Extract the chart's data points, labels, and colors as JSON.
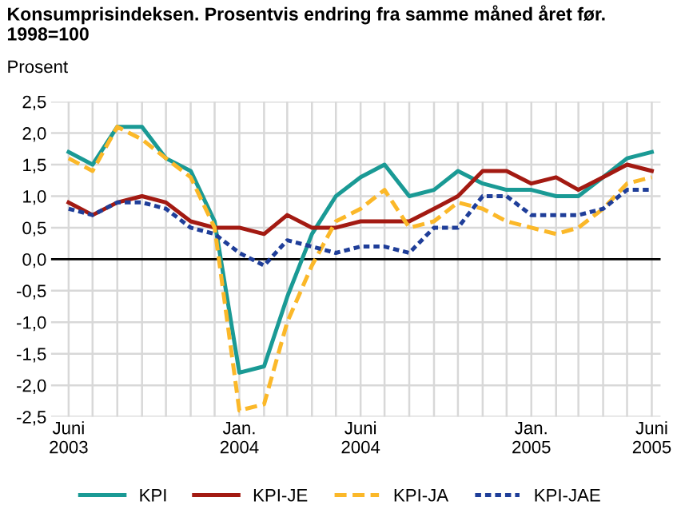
{
  "chart_data": {
    "type": "line",
    "title": "Konsumprisindeksen. Prosentvis endring fra samme måned året før.\n1998=100",
    "ylabel": "Prosent",
    "x": [
      "2003-06",
      "2003-07",
      "2003-08",
      "2003-09",
      "2003-10",
      "2003-11",
      "2003-12",
      "2004-01",
      "2004-02",
      "2004-03",
      "2004-04",
      "2004-05",
      "2004-06",
      "2004-07",
      "2004-08",
      "2004-09",
      "2004-10",
      "2004-11",
      "2004-12",
      "2005-01",
      "2005-02",
      "2005-03",
      "2005-04",
      "2005-05",
      "2005-06"
    ],
    "series": [
      {
        "name": "KPI",
        "color": "#1a9a95",
        "line_style": "solid",
        "values": [
          1.7,
          1.5,
          2.1,
          2.1,
          1.6,
          1.4,
          0.6,
          -1.8,
          -1.7,
          -0.6,
          0.4,
          1.0,
          1.3,
          1.5,
          1.0,
          1.1,
          1.4,
          1.2,
          1.1,
          1.1,
          1.0,
          1.0,
          1.3,
          1.6,
          1.7
        ]
      },
      {
        "name": "KPI-JE",
        "color": "#a31a12",
        "line_style": "solid",
        "values": [
          0.9,
          0.7,
          0.9,
          1.0,
          0.9,
          0.6,
          0.5,
          0.5,
          0.4,
          0.7,
          0.5,
          0.5,
          0.6,
          0.6,
          0.6,
          0.8,
          1.0,
          1.4,
          1.4,
          1.2,
          1.3,
          1.1,
          1.3,
          1.5,
          1.4
        ]
      },
      {
        "name": "KPI-JA",
        "color": "#fbb829",
        "line_style": "dashed",
        "values": [
          1.6,
          1.4,
          2.1,
          1.9,
          1.6,
          1.3,
          0.5,
          -2.4,
          -2.3,
          -1.0,
          -0.1,
          0.6,
          0.8,
          1.1,
          0.5,
          0.6,
          0.9,
          0.8,
          0.6,
          0.5,
          0.4,
          0.5,
          0.8,
          1.2,
          1.3
        ]
      },
      {
        "name": "KPI-JAE",
        "color": "#1f3e99",
        "line_style": "dotted",
        "values": [
          0.8,
          0.7,
          0.9,
          0.9,
          0.8,
          0.5,
          0.4,
          0.1,
          -0.1,
          0.3,
          0.2,
          0.1,
          0.2,
          0.2,
          0.1,
          0.5,
          0.5,
          1.0,
          1.0,
          0.7,
          0.7,
          0.7,
          0.8,
          1.1,
          1.1
        ]
      }
    ],
    "xlim": [
      "2003-05-10",
      "2005-06-12"
    ],
    "xticks": [
      {
        "value": "2003-06",
        "label": "Juni\n2003"
      },
      {
        "value": "2003-07",
        "label": null
      },
      {
        "value": "2003-08",
        "label": null
      },
      {
        "value": "2003-09",
        "label": null
      },
      {
        "value": "2003-10",
        "label": null
      },
      {
        "value": "2003-11",
        "label": null
      },
      {
        "value": "2003-12",
        "label": null
      },
      {
        "value": "2004-01",
        "label": "Jan.\n2004"
      },
      {
        "value": "2004-02",
        "label": null
      },
      {
        "value": "2004-03",
        "label": null
      },
      {
        "value": "2004-04",
        "label": null
      },
      {
        "value": "2004-05",
        "label": null
      },
      {
        "value": "2004-06",
        "label": "Juni\n2004"
      },
      {
        "value": "2004-07",
        "label": null
      },
      {
        "value": "2004-08",
        "label": null
      },
      {
        "value": "2004-09",
        "label": null
      },
      {
        "value": "2004-10",
        "label": null
      },
      {
        "value": "2004-11",
        "label": null
      },
      {
        "value": "2004-12",
        "label": null
      },
      {
        "value": "2005-01",
        "label": "Jan.\n2005"
      },
      {
        "value": "2005-02",
        "label": null
      },
      {
        "value": "2005-03",
        "label": null
      },
      {
        "value": "2005-04",
        "label": null
      },
      {
        "value": "2005-05",
        "label": null
      },
      {
        "value": "2005-06",
        "label": "Juni\n2005"
      }
    ],
    "ylim": [
      -2.5,
      2.5
    ],
    "yticks": [
      {
        "value": -2.5,
        "label": "-2,5"
      },
      {
        "value": -2.0,
        "label": "-2,0"
      },
      {
        "value": -1.5,
        "label": "-1,5"
      },
      {
        "value": -1.0,
        "label": "-1,0"
      },
      {
        "value": -0.5,
        "label": "-0,5"
      },
      {
        "value": 0.0,
        "label": "0,0"
      },
      {
        "value": 0.5,
        "label": "0,5"
      },
      {
        "value": 1.0,
        "label": "1,0"
      },
      {
        "value": 1.5,
        "label": "1,5"
      },
      {
        "value": 2.0,
        "label": "2,0"
      },
      {
        "value": 2.5,
        "label": "2,5"
      }
    ],
    "ref_lines": [
      {
        "axis": "y",
        "value": 0,
        "color": "#000000"
      }
    ],
    "grid": true,
    "legend": "bottom"
  }
}
